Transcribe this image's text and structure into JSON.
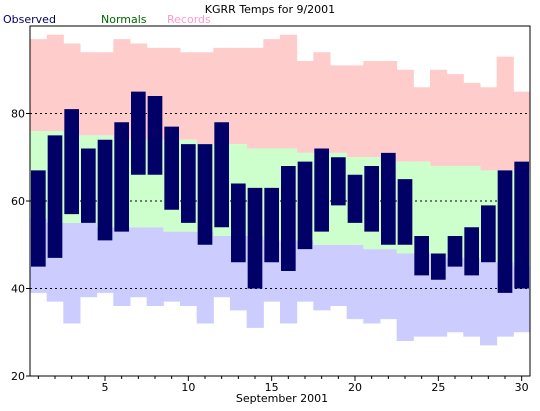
{
  "chart_data": {
    "type": "bar",
    "title": "KGRR Temps for 9/2001",
    "xlabel": "September 2001",
    "ylabel": "",
    "ylim": [
      20,
      100
    ],
    "xlim": [
      0.5,
      30.5
    ],
    "grid": "dashed horizontal lines at 40, 60 and 80",
    "legend": {
      "placement": "top-left",
      "entries": [
        {
          "name": "Observed",
          "color": "#000066"
        },
        {
          "name": "Normals",
          "color": "#006600"
        },
        {
          "name": "Records",
          "color": "#ff99cc"
        }
      ]
    },
    "x_ticks": [
      5,
      10,
      15,
      20,
      25,
      30
    ],
    "y_ticks": [
      20,
      40,
      60,
      80
    ],
    "days": [
      1,
      2,
      3,
      4,
      5,
      6,
      7,
      8,
      9,
      10,
      11,
      12,
      13,
      14,
      15,
      16,
      17,
      18,
      19,
      20,
      21,
      22,
      23,
      24,
      25,
      26,
      27,
      28,
      29,
      30
    ],
    "series": [
      {
        "name": "Records",
        "kind": "band",
        "color": "#ffcccc",
        "low": [
          39,
          37,
          32,
          38,
          39,
          36,
          38,
          36,
          37,
          36,
          32,
          38,
          35,
          31,
          37,
          32,
          37,
          35,
          36,
          33,
          32,
          33,
          28,
          29,
          29,
          30,
          29,
          27,
          29,
          30
        ],
        "high": [
          97,
          98,
          96,
          94,
          94,
          97,
          96,
          95,
          95,
          94,
          94,
          95,
          95,
          95,
          97,
          98,
          92,
          94,
          91,
          91,
          92,
          92,
          90,
          86,
          90,
          89,
          87,
          86,
          93,
          85
        ]
      },
      {
        "name": "Normals",
        "kind": "band",
        "color": "#ccffcc",
        "lowcolor": "#ccccff",
        "low": [
          56,
          55,
          55,
          55,
          54,
          54,
          54,
          54,
          53,
          53,
          53,
          52,
          52,
          52,
          51,
          51,
          51,
          50,
          50,
          50,
          49,
          49,
          48,
          48,
          48,
          47,
          47,
          46,
          46,
          45
        ],
        "high": [
          76,
          76,
          75,
          75,
          75,
          74,
          74,
          74,
          74,
          74,
          73,
          73,
          73,
          72,
          72,
          72,
          71,
          71,
          71,
          70,
          70,
          69,
          69,
          69,
          68,
          68,
          68,
          67,
          67,
          67
        ]
      },
      {
        "name": "Observed",
        "kind": "range",
        "color": "#000066",
        "low": [
          45,
          47,
          57,
          55,
          51,
          53,
          66,
          66,
          58,
          55,
          50,
          54,
          46,
          40,
          46,
          44,
          49,
          53,
          59,
          55,
          53,
          50,
          50,
          43,
          42,
          45,
          43,
          46,
          39,
          40
        ],
        "high": [
          67,
          75,
          81,
          72,
          74,
          78,
          85,
          84,
          77,
          73,
          73,
          78,
          64,
          63,
          63,
          68,
          69,
          72,
          70,
          66,
          68,
          71,
          65,
          52,
          48,
          52,
          54,
          59,
          67,
          69
        ]
      }
    ]
  }
}
